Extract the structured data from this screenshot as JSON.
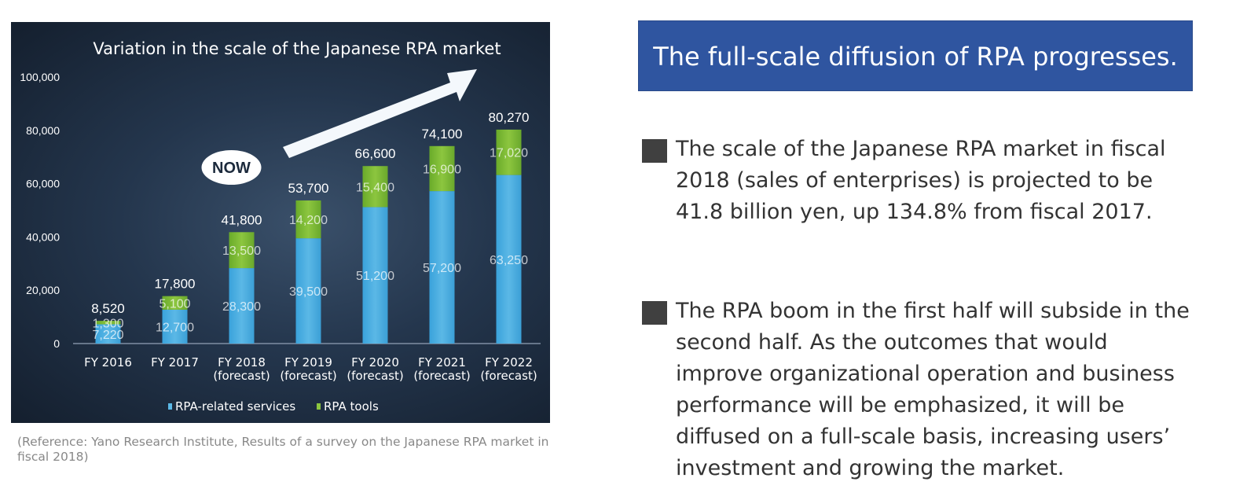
{
  "chart_data": {
    "type": "bar",
    "stacked": true,
    "title": "Variation in the scale of the Japanese RPA market",
    "categories": [
      [
        "FY 2016"
      ],
      [
        "FY 2017"
      ],
      [
        "FY 2018",
        "(forecast)"
      ],
      [
        "FY 2019",
        "(forecast)"
      ],
      [
        "FY 2020",
        "(forecast)"
      ],
      [
        "FY 2021",
        "(forecast)"
      ],
      [
        "FY 2022",
        "(forecast)"
      ]
    ],
    "series": [
      {
        "name": "RPA-related services",
        "color": "#5bb8e6",
        "values": [
          7220,
          12700,
          28300,
          39500,
          51200,
          57200,
          63250
        ],
        "labels": [
          "7,220",
          "12,700",
          "28,300",
          "39,500",
          "51,200",
          "57,200",
          "63,250"
        ]
      },
      {
        "name": "RPA tools",
        "color": "#8cc63f",
        "values": [
          1300,
          5100,
          13500,
          14200,
          15400,
          16900,
          17020
        ],
        "labels": [
          "1,300",
          "5,100",
          "13,500",
          "14,200",
          "15,400",
          "16,900",
          "17,020"
        ]
      }
    ],
    "totals": [
      "8,520",
      "17,800",
      "41,800",
      "53,700",
      "66,600",
      "74,100",
      "80,270"
    ],
    "ylim": [
      0,
      100000
    ],
    "yticks": [
      0,
      20000,
      40000,
      60000,
      80000,
      100000
    ],
    "ytick_labels": [
      "0",
      "20,000",
      "40,000",
      "60,000",
      "80,000",
      "100,000"
    ],
    "xlabel": "",
    "ylabel": "",
    "grid": false,
    "legend_position": "bottom-center",
    "annotation": "NOW",
    "annotation_category_index": 2,
    "arrow": "up-right trend arrow"
  },
  "reference": "(Reference: Yano Research Institute, Results of a survey on the Japanese RPA market in fiscal 2018)",
  "headline": "The full-scale diffusion of RPA progresses.",
  "bullets": [
    "The scale of the Japanese RPA market in fiscal 2018 (sales of enterprises) is projected to be 41.8 billion yen, up 134.8% from fiscal 2017.",
    "The RPA boom in the first half will subside in the second half. As the outcomes that would improve organizational operation and business performance will be emphasized, it will be diffused on a full-scale basis, increasing users’ investment and growing the market."
  ],
  "colors": {
    "headline_bg": "#2f55a0",
    "bullet_square": "#404040"
  }
}
